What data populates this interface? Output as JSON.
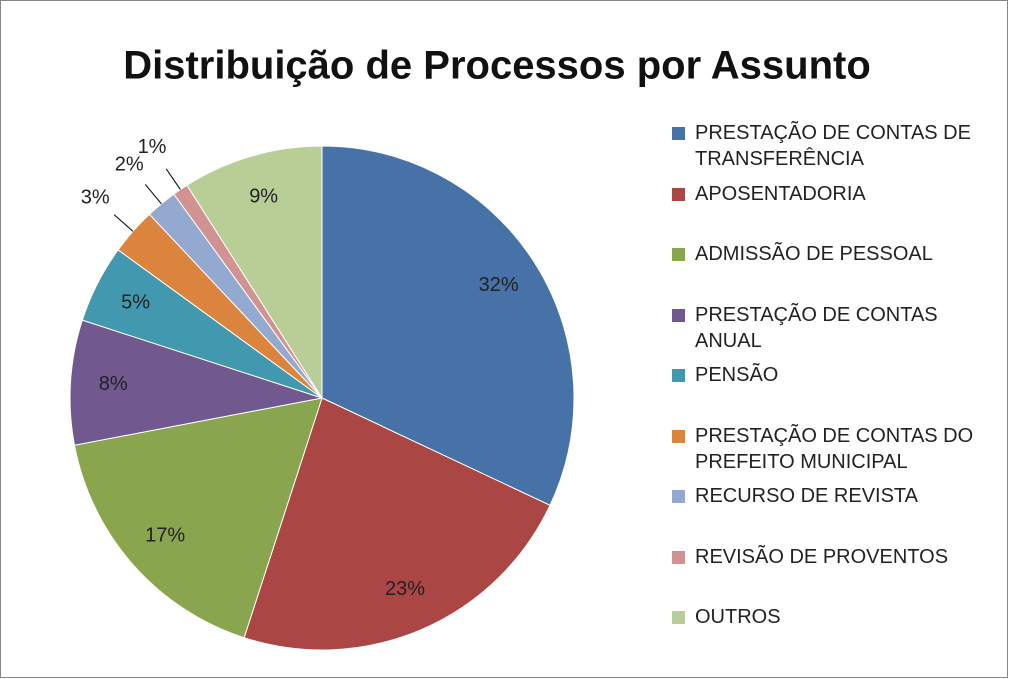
{
  "chart_data": {
    "type": "pie",
    "title": "Distribuição de Processos por Assunto",
    "categories": [
      "PRESTAÇÃO DE CONTAS DE TRANSFERÊNCIA",
      "APOSENTADORIA",
      "ADMISSÃO DE PESSOAL",
      "PRESTAÇÃO DE CONTAS ANUAL",
      "PENSÃO",
      "PRESTAÇÃO DE CONTAS DO PREFEITO MUNICIPAL",
      "RECURSO DE REVISTA",
      "REVISÃO DE PROVENTOS",
      "OUTROS"
    ],
    "values": [
      32,
      23,
      17,
      8,
      5,
      3,
      2,
      1,
      9
    ],
    "value_labels": [
      "32%",
      "23%",
      "17%",
      "8%",
      "5%",
      "3%",
      "2%",
      "1%",
      "9%"
    ],
    "colors": [
      "#4672a8",
      "#aa4643",
      "#89a54e",
      "#71588f",
      "#4198af",
      "#db843d",
      "#93a9cf",
      "#d19392",
      "#b9cd96"
    ],
    "legend": "right"
  }
}
